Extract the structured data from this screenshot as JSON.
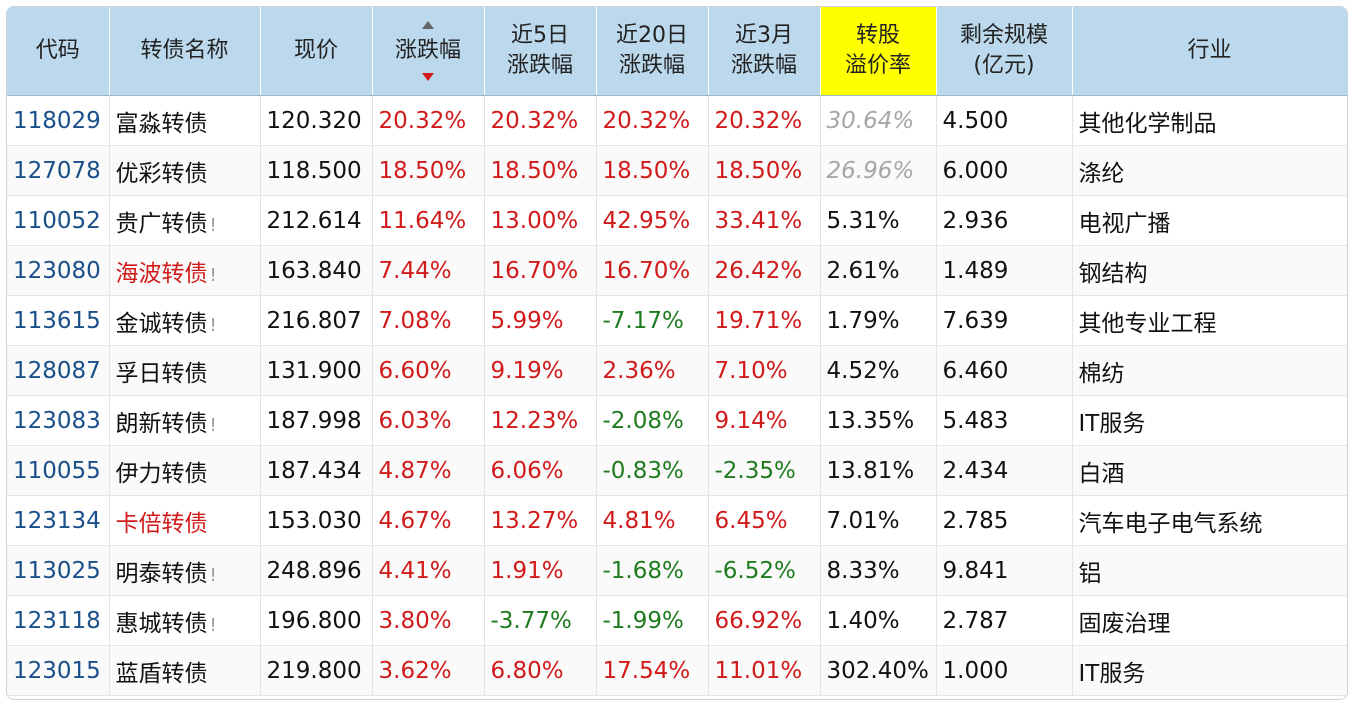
{
  "table": {
    "headers": {
      "code": "代码",
      "name": "转债名称",
      "price": "现价",
      "change": "涨跌幅",
      "chg5_l1": "近5日",
      "chg5_l2": "涨跌幅",
      "chg20_l1": "近20日",
      "chg20_l2": "涨跌幅",
      "chg3m_l1": "近3月",
      "chg3m_l2": "涨跌幅",
      "premium_l1": "转股",
      "premium_l2": "溢价率",
      "scale_l1": "剩余规模",
      "scale_l2": "(亿元)",
      "industry": "行业"
    },
    "sort_icons": [
      "sort-up-icon",
      "sort-down-icon"
    ],
    "colors": {
      "up": "#d11a1a",
      "down": "#1e7b1e",
      "header_bg": "#bcd8ec",
      "highlight": "#ffff00",
      "code": "#1a4f8a"
    },
    "rows": [
      {
        "code": "118029",
        "name": "富淼转债",
        "warn": false,
        "name_red": false,
        "price": "120.320",
        "change": "20.32%",
        "chg5": "20.32%",
        "chg20": "20.32%",
        "chg3m": "20.32%",
        "premium": "30.64%",
        "scale": "4.500",
        "industry": "其他化学制品"
      },
      {
        "code": "127078",
        "name": "优彩转债",
        "warn": false,
        "name_red": false,
        "price": "118.500",
        "change": "18.50%",
        "chg5": "18.50%",
        "chg20": "18.50%",
        "chg3m": "18.50%",
        "premium": "26.96%",
        "scale": "6.000",
        "industry": "涤纶"
      },
      {
        "code": "110052",
        "name": "贵广转债",
        "warn": true,
        "name_red": false,
        "price": "212.614",
        "change": "11.64%",
        "chg5": "13.00%",
        "chg20": "42.95%",
        "chg3m": "33.41%",
        "premium": "5.31%",
        "scale": "2.936",
        "industry": "电视广播"
      },
      {
        "code": "123080",
        "name": "海波转债",
        "warn": true,
        "name_red": true,
        "price": "163.840",
        "change": "7.44%",
        "chg5": "16.70%",
        "chg20": "16.70%",
        "chg3m": "26.42%",
        "premium": "2.61%",
        "scale": "1.489",
        "industry": "钢结构"
      },
      {
        "code": "113615",
        "name": "金诚转债",
        "warn": true,
        "name_red": false,
        "price": "216.807",
        "change": "7.08%",
        "chg5": "5.99%",
        "chg20": "-7.17%",
        "chg3m": "19.71%",
        "premium": "1.79%",
        "scale": "7.639",
        "industry": "其他专业工程"
      },
      {
        "code": "128087",
        "name": "孚日转债",
        "warn": false,
        "name_red": false,
        "price": "131.900",
        "change": "6.60%",
        "chg5": "9.19%",
        "chg20": "2.36%",
        "chg3m": "7.10%",
        "premium": "4.52%",
        "scale": "6.460",
        "industry": "棉纺"
      },
      {
        "code": "123083",
        "name": "朗新转债",
        "warn": true,
        "name_red": false,
        "price": "187.998",
        "change": "6.03%",
        "chg5": "12.23%",
        "chg20": "-2.08%",
        "chg3m": "9.14%",
        "premium": "13.35%",
        "scale": "5.483",
        "industry": "IT服务"
      },
      {
        "code": "110055",
        "name": "伊力转债",
        "warn": false,
        "name_red": false,
        "price": "187.434",
        "change": "4.87%",
        "chg5": "6.06%",
        "chg20": "-0.83%",
        "chg3m": "-2.35%",
        "premium": "13.81%",
        "scale": "2.434",
        "industry": "白酒"
      },
      {
        "code": "123134",
        "name": "卡倍转债",
        "warn": false,
        "name_red": true,
        "price": "153.030",
        "change": "4.67%",
        "chg5": "13.27%",
        "chg20": "4.81%",
        "chg3m": "6.45%",
        "premium": "7.01%",
        "scale": "2.785",
        "industry": "汽车电子电气系统"
      },
      {
        "code": "113025",
        "name": "明泰转债",
        "warn": true,
        "name_red": false,
        "price": "248.896",
        "change": "4.41%",
        "chg5": "1.91%",
        "chg20": "-1.68%",
        "chg3m": "-6.52%",
        "premium": "8.33%",
        "scale": "9.841",
        "industry": "铝"
      },
      {
        "code": "123118",
        "name": "惠城转债",
        "warn": true,
        "name_red": false,
        "price": "196.800",
        "change": "3.80%",
        "chg5": "-3.77%",
        "chg20": "-1.99%",
        "chg3m": "66.92%",
        "premium": "1.40%",
        "scale": "2.787",
        "industry": "固废治理"
      },
      {
        "code": "123015",
        "name": "蓝盾转债",
        "warn": false,
        "name_red": false,
        "price": "219.800",
        "change": "3.62%",
        "chg5": "6.80%",
        "chg20": "17.54%",
        "chg3m": "11.01%",
        "premium": "302.40%",
        "scale": "1.000",
        "industry": "IT服务"
      }
    ],
    "warn_mark": "!"
  }
}
